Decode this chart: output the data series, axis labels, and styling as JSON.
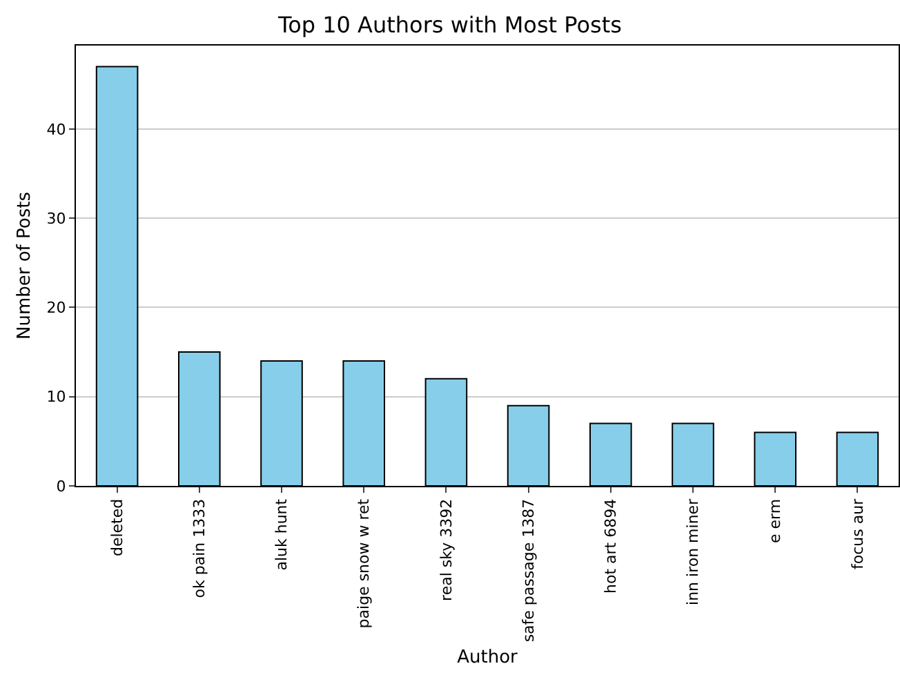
{
  "chart_data": {
    "type": "bar",
    "title": "Top 10 Authors with Most Posts",
    "xlabel": "Author",
    "ylabel": "Number of Posts",
    "categories": [
      "deleted",
      "ok pain 1333",
      "aluk hunt",
      "paige snow w ret",
      "real sky 3392",
      "safe passage 1387",
      "hot art 6894",
      "inn iron miner",
      "e erm",
      "focus aur"
    ],
    "values": [
      47,
      15,
      14,
      14,
      12,
      9,
      7,
      7,
      6,
      6
    ],
    "color": "#87ceeb",
    "ylim": [
      0,
      49.35
    ],
    "yticks": [
      0,
      10,
      20,
      30,
      40
    ],
    "grid": "y"
  }
}
